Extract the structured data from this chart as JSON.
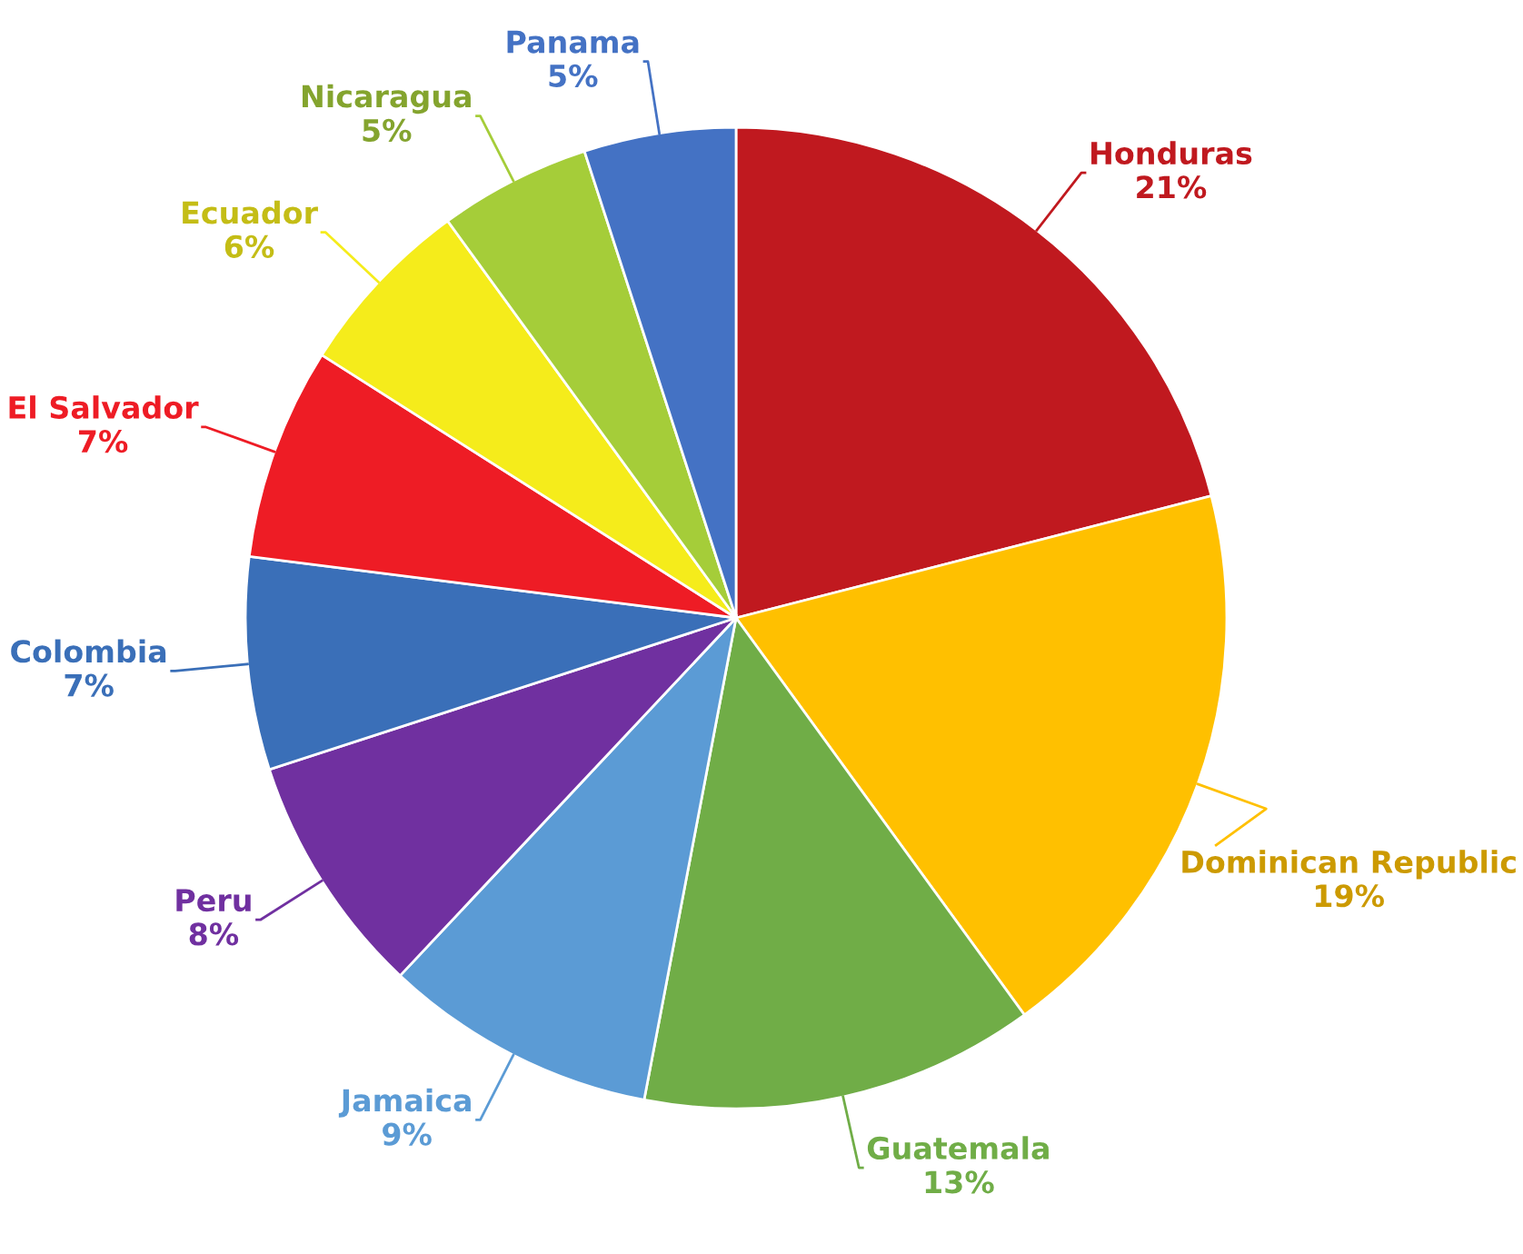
{
  "chart_data": {
    "type": "pie",
    "categories": [
      "Honduras",
      "Dominican Republic",
      "Guatemala",
      "Jamaica",
      "Peru",
      "Colombia",
      "El Salvador",
      "Ecuador",
      "Nicaragua",
      "Panama"
    ],
    "values": [
      21,
      19,
      13,
      9,
      8,
      7,
      7,
      6,
      5,
      5
    ],
    "value_labels": [
      "21%",
      "19%",
      "13%",
      "9%",
      "8%",
      "7%",
      "7%",
      "6%",
      "5%",
      "5%"
    ],
    "colors": [
      "#c0191f",
      "#ffc000",
      "#70ad47",
      "#5b9bd5",
      "#7030a0",
      "#3a6fb8",
      "#ee1c25",
      "#f5ec1b",
      "#a5cd39",
      "#4472c4"
    ]
  }
}
